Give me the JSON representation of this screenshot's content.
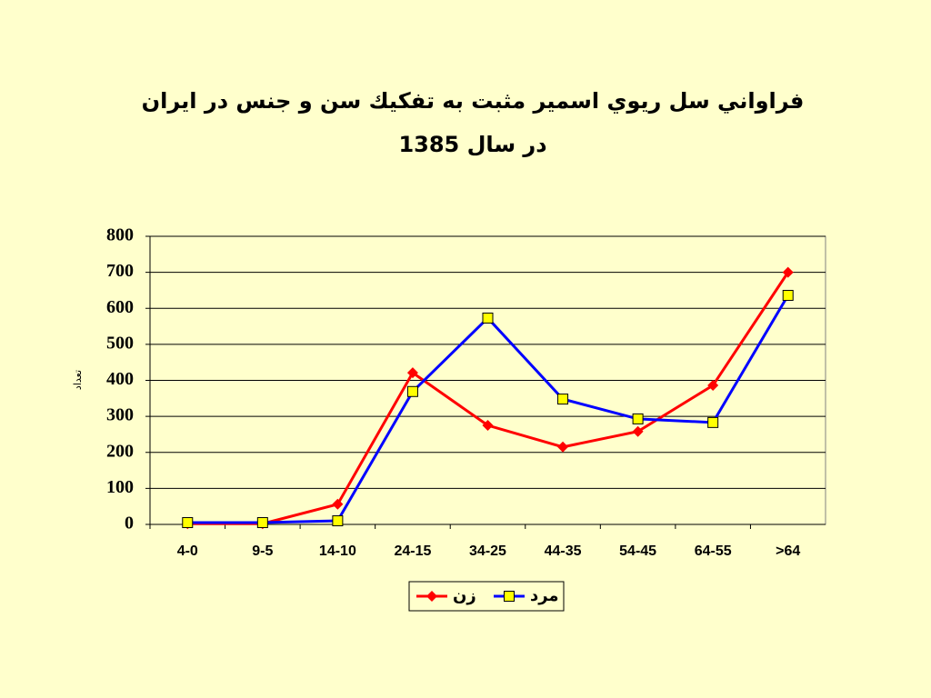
{
  "chart_data": {
    "type": "line",
    "title": [
      "فراواني سل ريوي اسمير مثبت به تفكيك سن و جنس در ايران",
      "در سال 1385"
    ],
    "y_label": "تعداد",
    "categories": [
      "4-0",
      "9-5",
      "14-10",
      "24-15",
      "34-25",
      "44-35",
      "54-45",
      "64-55",
      ">64"
    ],
    "series": [
      {
        "name": "زن",
        "color": "#ff0000",
        "marker": "diamond",
        "values": [
          2,
          2,
          56,
          421,
          275,
          215,
          258,
          386,
          700
        ]
      },
      {
        "name": "مرد",
        "color": "#0000ff",
        "marker": "square",
        "values": [
          5,
          5,
          10,
          369,
          573,
          348,
          293,
          283,
          636
        ]
      }
    ],
    "ylim": [
      0,
      800
    ],
    "yticks": [
      0,
      100,
      200,
      300,
      400,
      500,
      600,
      700,
      800
    ],
    "grid": true
  }
}
